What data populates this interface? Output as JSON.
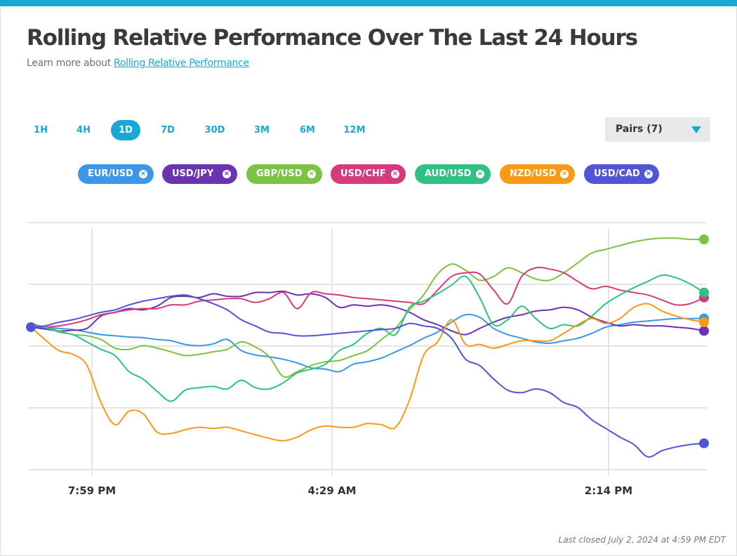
{
  "header": {
    "title": "Rolling Relative Performance Over The Last 24 Hours",
    "subtitle_prefix": "Learn more about",
    "subtitle_link": "Rolling Relative Performance"
  },
  "timeframes": [
    {
      "label": "1H",
      "active": false
    },
    {
      "label": "4H",
      "active": false
    },
    {
      "label": "1D",
      "active": true
    },
    {
      "label": "7D",
      "active": false
    },
    {
      "label": "30D",
      "active": false
    },
    {
      "label": "3M",
      "active": false
    },
    {
      "label": "6M",
      "active": false
    },
    {
      "label": "12M",
      "active": false
    }
  ],
  "pairs_dropdown": {
    "label": "Pairs (7)"
  },
  "chips": [
    {
      "label": "EUR/USD",
      "color": "#3b97e8"
    },
    {
      "label": "USD/JPY",
      "color": "#6a34b0"
    },
    {
      "label": "GBP/USD",
      "color": "#7cc243"
    },
    {
      "label": "USD/CHF",
      "color": "#d63a7c"
    },
    {
      "label": "AUD/USD",
      "color": "#2fc184"
    },
    {
      "label": "NZD/USD",
      "color": "#f89a16"
    },
    {
      "label": "USD/CAD",
      "color": "#4f55d6"
    }
  ],
  "chart_data": {
    "type": "line",
    "grid": true,
    "xticks": [
      "7:59 PM",
      "4:29 AM",
      "2:14 PM"
    ],
    "x": [
      0,
      1,
      2,
      3,
      4,
      5,
      6,
      7,
      8,
      9,
      10,
      11,
      12,
      13,
      14,
      15,
      16,
      17,
      18,
      19,
      20,
      21,
      22,
      23,
      24,
      25,
      26,
      27,
      28,
      29,
      30,
      31,
      32,
      33,
      34,
      35,
      36,
      37,
      38,
      39,
      40,
      41,
      42,
      43,
      44,
      45,
      46,
      47,
      48
    ],
    "series": [
      {
        "name": "EUR/USD",
        "color": "#3b97e8",
        "values": [
          0,
          -0.01,
          -0.02,
          -0.04,
          -0.08,
          -0.12,
          -0.14,
          -0.16,
          -0.17,
          -0.2,
          -0.22,
          -0.28,
          -0.3,
          -0.27,
          -0.2,
          -0.38,
          -0.45,
          -0.48,
          -0.52,
          -0.58,
          -0.66,
          -0.68,
          -0.72,
          -0.6,
          -0.56,
          -0.5,
          -0.4,
          -0.3,
          -0.18,
          -0.08,
          0.08,
          0.2,
          0.16,
          -0.02,
          -0.12,
          -0.18,
          -0.24,
          -0.26,
          -0.22,
          -0.18,
          -0.1,
          0,
          0.04,
          0.08,
          0.1,
          0.12,
          0.14,
          0.14,
          0.14
        ]
      },
      {
        "name": "USD/JPY",
        "color": "#6a34b0",
        "values": [
          0,
          -0.03,
          -0.06,
          -0.05,
          -0.02,
          0.18,
          0.24,
          0.3,
          0.28,
          0.34,
          0.48,
          0.5,
          0.48,
          0.54,
          0.5,
          0.5,
          0.56,
          0.56,
          0.58,
          0.52,
          0.54,
          0.48,
          0.32,
          0.36,
          0.34,
          0.36,
          0.32,
          0.24,
          0.12,
          0.04,
          -0.06,
          -0.12,
          -0.02,
          0.08,
          0.16,
          0.2,
          0.26,
          0.28,
          0.32,
          0.28,
          0.16,
          0.08,
          0.02,
          0.04,
          0.02,
          0.02,
          0.0,
          -0.02,
          -0.06
        ]
      },
      {
        "name": "GBP/USD",
        "color": "#7cc243",
        "values": [
          0.06,
          0.0,
          -0.06,
          -0.12,
          -0.14,
          -0.2,
          -0.34,
          -0.36,
          -0.3,
          -0.34,
          -0.4,
          -0.46,
          -0.44,
          -0.4,
          -0.36,
          -0.24,
          -0.32,
          -0.48,
          -0.8,
          -0.72,
          -0.62,
          -0.56,
          -0.54,
          -0.46,
          -0.38,
          -0.2,
          -0.02,
          0.28,
          0.52,
          0.86,
          1.02,
          0.92,
          0.76,
          0.82,
          0.96,
          0.88,
          0.78,
          0.76,
          0.88,
          1.04,
          1.2,
          1.26,
          1.32,
          1.38,
          1.42,
          1.44,
          1.44,
          1.42,
          1.42
        ]
      },
      {
        "name": "USD/CHF",
        "color": "#d63a7c",
        "values": [
          0,
          0.0,
          0.02,
          0.06,
          0.12,
          0.2,
          0.24,
          0.28,
          0.3,
          0.3,
          0.36,
          0.36,
          0.42,
          0.44,
          0.46,
          0.46,
          0.4,
          0.46,
          0.56,
          0.3,
          0.56,
          0.54,
          0.52,
          0.48,
          0.46,
          0.44,
          0.42,
          0.4,
          0.38,
          0.6,
          0.82,
          0.88,
          0.86,
          0.6,
          0.38,
          0.82,
          0.96,
          0.94,
          0.88,
          0.74,
          0.62,
          0.66,
          0.6,
          0.56,
          0.52,
          0.44,
          0.36,
          0.38,
          0.48
        ]
      },
      {
        "name": "AUD/USD",
        "color": "#2fc184",
        "values": [
          0.04,
          0.0,
          -0.08,
          -0.12,
          -0.24,
          -0.36,
          -0.46,
          -0.72,
          -0.84,
          -1.04,
          -1.2,
          -1.02,
          -0.98,
          -0.96,
          -1.0,
          -0.86,
          -0.98,
          -1.0,
          -0.9,
          -0.74,
          -0.68,
          -0.6,
          -0.38,
          -0.28,
          -0.1,
          -0.02,
          -0.12,
          0.32,
          0.42,
          0.54,
          0.68,
          0.82,
          0.48,
          0.04,
          0.12,
          0.34,
          0.14,
          -0.02,
          0.04,
          0.02,
          0.18,
          0.38,
          0.52,
          0.64,
          0.74,
          0.84,
          0.8,
          0.7,
          0.56
        ]
      },
      {
        "name": "NZD/USD",
        "color": "#f89a16",
        "values": [
          0,
          -0.2,
          -0.38,
          -0.44,
          -0.62,
          -1.22,
          -1.58,
          -1.36,
          -1.4,
          -1.7,
          -1.72,
          -1.66,
          -1.62,
          -1.64,
          -1.62,
          -1.68,
          -1.74,
          -1.8,
          -1.84,
          -1.78,
          -1.66,
          -1.6,
          -1.62,
          -1.62,
          -1.56,
          -1.58,
          -1.62,
          -1.18,
          -0.46,
          -0.24,
          0.12,
          -0.28,
          -0.28,
          -0.34,
          -0.28,
          -0.22,
          -0.22,
          -0.22,
          -0.1,
          0.04,
          0.14,
          0.06,
          0.14,
          0.32,
          0.38,
          0.26,
          0.18,
          0.12,
          0.08
        ]
      },
      {
        "name": "USD/CAD",
        "color": "#4f55d6",
        "values": [
          0,
          0.02,
          0.08,
          0.12,
          0.18,
          0.24,
          0.28,
          0.36,
          0.42,
          0.46,
          0.5,
          0.52,
          0.46,
          0.38,
          0.28,
          0.12,
          0.02,
          -0.08,
          -0.1,
          -0.14,
          -0.14,
          -0.12,
          -0.1,
          -0.08,
          -0.06,
          -0.04,
          -0.02,
          0.06,
          0.02,
          -0.02,
          -0.18,
          -0.52,
          -0.62,
          -0.84,
          -1.02,
          -1.06,
          -1.0,
          -1.06,
          -1.22,
          -1.3,
          -1.5,
          -1.64,
          -1.78,
          -1.9,
          -2.1,
          -2.0,
          -1.94,
          -1.9,
          -1.88
        ]
      }
    ]
  },
  "footer": {
    "note": "Last closed July 2, 2024 at 4:59 PM EDT"
  }
}
